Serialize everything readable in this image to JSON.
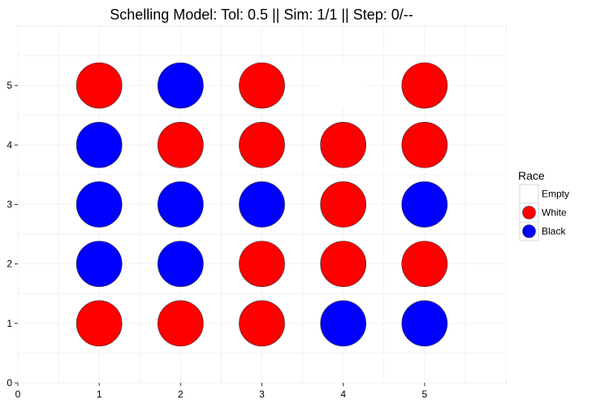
{
  "chart_data": {
    "type": "scatter",
    "title": "Schelling Model: Tol: 0.5 || Sim: 1/1 || Step: 0/--",
    "xlabel": "",
    "ylabel": "",
    "xlim": [
      0,
      6
    ],
    "ylim": [
      0,
      6
    ],
    "x_ticks": [
      0,
      1,
      2,
      3,
      4,
      5
    ],
    "y_ticks": [
      0,
      1,
      2,
      3,
      4,
      5
    ],
    "grid": true,
    "legend": {
      "title": "Race",
      "position": "right",
      "entries": [
        {
          "name": "Empty",
          "color": "#ffffff"
        },
        {
          "name": "White",
          "color": "#ff0000"
        },
        {
          "name": "Black",
          "color": "#0000ff"
        }
      ]
    },
    "colors": {
      "Empty": "#ffffff",
      "White": "#ff0000",
      "Black": "#0000ff"
    },
    "points": [
      {
        "x": 1,
        "y": 5,
        "race": "White"
      },
      {
        "x": 2,
        "y": 5,
        "race": "Black"
      },
      {
        "x": 3,
        "y": 5,
        "race": "White"
      },
      {
        "x": 4,
        "y": 5,
        "race": "Empty"
      },
      {
        "x": 5,
        "y": 5,
        "race": "White"
      },
      {
        "x": 1,
        "y": 4,
        "race": "Black"
      },
      {
        "x": 2,
        "y": 4,
        "race": "White"
      },
      {
        "x": 3,
        "y": 4,
        "race": "White"
      },
      {
        "x": 4,
        "y": 4,
        "race": "White"
      },
      {
        "x": 5,
        "y": 4,
        "race": "White"
      },
      {
        "x": 1,
        "y": 3,
        "race": "Black"
      },
      {
        "x": 2,
        "y": 3,
        "race": "Black"
      },
      {
        "x": 3,
        "y": 3,
        "race": "Black"
      },
      {
        "x": 4,
        "y": 3,
        "race": "White"
      },
      {
        "x": 5,
        "y": 3,
        "race": "Black"
      },
      {
        "x": 1,
        "y": 2,
        "race": "Black"
      },
      {
        "x": 2,
        "y": 2,
        "race": "Black"
      },
      {
        "x": 3,
        "y": 2,
        "race": "White"
      },
      {
        "x": 4,
        "y": 2,
        "race": "White"
      },
      {
        "x": 5,
        "y": 2,
        "race": "White"
      },
      {
        "x": 1,
        "y": 1,
        "race": "White"
      },
      {
        "x": 2,
        "y": 1,
        "race": "White"
      },
      {
        "x": 3,
        "y": 1,
        "race": "White"
      },
      {
        "x": 4,
        "y": 1,
        "race": "Black"
      },
      {
        "x": 5,
        "y": 1,
        "race": "Black"
      }
    ]
  }
}
